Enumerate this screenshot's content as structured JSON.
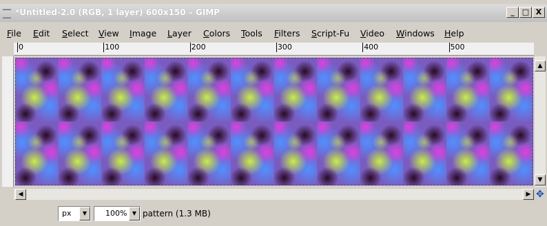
{
  "window": {
    "title": "*Untitled-2.0 (RGB, 1 layer) 600x150 – GIMP"
  },
  "menu": [
    "File",
    "Edit",
    "Select",
    "View",
    "Image",
    "Layer",
    "Colors",
    "Tools",
    "Filters",
    "Script-Fu",
    "Video",
    "Windows",
    "Help"
  ],
  "ruler": {
    "labels": [
      0,
      100,
      200,
      300,
      400,
      500
    ]
  },
  "status": {
    "unit": "px",
    "zoom": "100%",
    "message": "pattern (1.3 MB)"
  }
}
